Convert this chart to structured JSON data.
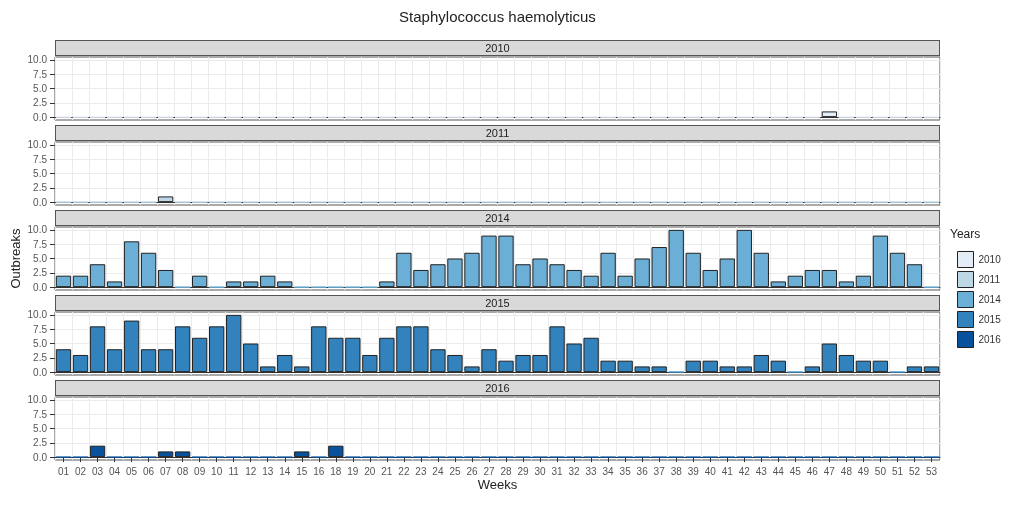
{
  "chart_data": [
    {
      "type": "bar",
      "title": "Staphylococcus haemolyticus",
      "subtitle": "2010",
      "categories": [
        "01",
        "02",
        "03",
        "04",
        "05",
        "06",
        "07",
        "08",
        "09",
        "10",
        "11",
        "12",
        "13",
        "14",
        "15",
        "16",
        "18",
        "19",
        "20",
        "21",
        "22",
        "23",
        "24",
        "25",
        "26",
        "27",
        "28",
        "29",
        "30",
        "31",
        "32",
        "33",
        "34",
        "35",
        "36",
        "37",
        "38",
        "39",
        "40",
        "41",
        "42",
        "43",
        "44",
        "45",
        "46",
        "47",
        "48",
        "49",
        "50",
        "51",
        "52",
        "53"
      ],
      "series": [
        {
          "name": "2010",
          "color": "#e4ecf8",
          "values": [
            0,
            0,
            0,
            0,
            0,
            0,
            0,
            0,
            0,
            0,
            0,
            0,
            0,
            0,
            0,
            0,
            0,
            0,
            0,
            0,
            0,
            0,
            0,
            0,
            0,
            0,
            0,
            0,
            0,
            0,
            0,
            0,
            0,
            0,
            0,
            0,
            0,
            0,
            0,
            0,
            0,
            0,
            0,
            0,
            0,
            1,
            0,
            0,
            0,
            0,
            0,
            0
          ]
        }
      ],
      "ylim": [
        -0.5,
        10.5
      ],
      "yticks": [
        {
          "value": 0,
          "label": "0.0"
        },
        {
          "value": 2.5,
          "label": "2.5"
        },
        {
          "value": 5,
          "label": "5.0"
        },
        {
          "value": 7.5,
          "label": "7.5"
        },
        {
          "value": 10,
          "label": "10.0"
        }
      ],
      "grid": true,
      "tick_labels": "y",
      "legend": "right"
    },
    {
      "type": "bar",
      "subtitle": "2011",
      "legend": "right",
      "categories": [
        "01",
        "02",
        "03",
        "04",
        "05",
        "06",
        "07",
        "08",
        "09",
        "10",
        "11",
        "12",
        "13",
        "14",
        "15",
        "16",
        "18",
        "19",
        "20",
        "21",
        "22",
        "23",
        "24",
        "25",
        "26",
        "27",
        "28",
        "29",
        "30",
        "31",
        "32",
        "33",
        "34",
        "35",
        "36",
        "37",
        "38",
        "39",
        "40",
        "41",
        "42",
        "43",
        "44",
        "45",
        "46",
        "47",
        "48",
        "49",
        "50",
        "51",
        "52",
        "53"
      ],
      "series": [
        {
          "name": "2011",
          "color": "#bdd7e7",
          "values": [
            0,
            0,
            0,
            0,
            0,
            0,
            1,
            0,
            0,
            0,
            0,
            0,
            0,
            0,
            0,
            0,
            0,
            0,
            0,
            0,
            0,
            0,
            0,
            0,
            0,
            0,
            0,
            0,
            0,
            0,
            0,
            0,
            0,
            0,
            0,
            0,
            0,
            0,
            0,
            0,
            0,
            0,
            0,
            0,
            0,
            0,
            0,
            0,
            0,
            0,
            0,
            0
          ]
        }
      ],
      "ylim": [
        -0.5,
        10.5
      ],
      "yticks": [
        {
          "value": 0,
          "label": "0.0"
        },
        {
          "value": 2.5,
          "label": "2.5"
        },
        {
          "value": 5,
          "label": "5.0"
        },
        {
          "value": 7.5,
          "label": "7.5"
        },
        {
          "value": 10,
          "label": "10.0"
        }
      ],
      "grid": true,
      "tick_labels": "y"
    },
    {
      "type": "bar",
      "subtitle": "2014",
      "ylabel": "Outbreaks",
      "legend_title": "Years",
      "legend": "right",
      "categories": [
        "01",
        "02",
        "03",
        "04",
        "05",
        "06",
        "07",
        "08",
        "09",
        "10",
        "11",
        "12",
        "13",
        "14",
        "15",
        "16",
        "18",
        "19",
        "20",
        "21",
        "22",
        "23",
        "24",
        "25",
        "26",
        "27",
        "28",
        "29",
        "30",
        "31",
        "32",
        "33",
        "34",
        "35",
        "36",
        "37",
        "38",
        "39",
        "40",
        "41",
        "42",
        "43",
        "44",
        "45",
        "46",
        "47",
        "48",
        "49",
        "50",
        "51",
        "52",
        "53"
      ],
      "series": [
        {
          "name": "2014",
          "color": "#6baed6",
          "values": [
            2,
            2,
            4,
            1,
            8,
            6,
            3,
            0,
            2,
            0,
            1,
            1,
            2,
            1,
            0,
            0,
            0,
            0,
            0,
            1,
            6,
            3,
            4,
            5,
            6,
            9,
            9,
            4,
            5,
            4,
            3,
            2,
            6,
            2,
            5,
            7,
            10,
            6,
            3,
            5,
            10,
            6,
            1,
            2,
            3,
            3,
            1,
            2,
            9,
            6,
            4,
            0
          ]
        }
      ],
      "ylim": [
        -0.5,
        10.5
      ],
      "yticks": [
        {
          "value": 0,
          "label": "0.0"
        },
        {
          "value": 2.5,
          "label": "2.5"
        },
        {
          "value": 5,
          "label": "5.0"
        },
        {
          "value": 7.5,
          "label": "7.5"
        },
        {
          "value": 10,
          "label": "10.0"
        }
      ],
      "grid": true,
      "tick_labels": "y"
    },
    {
      "type": "bar",
      "subtitle": "2015",
      "legend": "right",
      "categories": [
        "01",
        "02",
        "03",
        "04",
        "05",
        "06",
        "07",
        "08",
        "09",
        "10",
        "11",
        "12",
        "13",
        "14",
        "15",
        "16",
        "18",
        "19",
        "20",
        "21",
        "22",
        "23",
        "24",
        "25",
        "26",
        "27",
        "28",
        "29",
        "30",
        "31",
        "32",
        "33",
        "34",
        "35",
        "36",
        "37",
        "38",
        "39",
        "40",
        "41",
        "42",
        "43",
        "44",
        "45",
        "46",
        "47",
        "48",
        "49",
        "50",
        "51",
        "52",
        "53"
      ],
      "series": [
        {
          "name": "2015",
          "color": "#3182bd",
          "values": [
            4,
            3,
            8,
            4,
            9,
            4,
            4,
            8,
            6,
            8,
            10,
            5,
            1,
            3,
            1,
            8,
            6,
            6,
            3,
            6,
            8,
            8,
            4,
            3,
            1,
            4,
            2,
            3,
            3,
            8,
            5,
            6,
            2,
            2,
            1,
            1,
            0,
            2,
            2,
            1,
            1,
            3,
            2,
            0,
            1,
            5,
            3,
            2,
            2,
            0,
            1,
            1
          ]
        }
      ],
      "ylim": [
        -0.5,
        10.5
      ],
      "yticks": [
        {
          "value": 0,
          "label": "0.0"
        },
        {
          "value": 2.5,
          "label": "2.5"
        },
        {
          "value": 5,
          "label": "5.0"
        },
        {
          "value": 7.5,
          "label": "7.5"
        },
        {
          "value": 10,
          "label": "10.0"
        }
      ],
      "grid": true,
      "tick_labels": "y"
    },
    {
      "type": "bar",
      "subtitle": "2016",
      "legend": "right",
      "xlabel": "Weeks",
      "categories": [
        "01",
        "02",
        "03",
        "04",
        "05",
        "06",
        "07",
        "08",
        "09",
        "10",
        "11",
        "12",
        "13",
        "14",
        "15",
        "16",
        "18",
        "19",
        "20",
        "21",
        "22",
        "23",
        "24",
        "25",
        "26",
        "27",
        "28",
        "29",
        "30",
        "31",
        "32",
        "33",
        "34",
        "35",
        "36",
        "37",
        "38",
        "39",
        "40",
        "41",
        "42",
        "43",
        "44",
        "45",
        "46",
        "47",
        "48",
        "49",
        "50",
        "51",
        "52",
        "53"
      ],
      "series": [
        {
          "name": "2016",
          "color": "#08519c",
          "values": [
            0,
            0,
            2,
            0,
            0,
            0,
            1,
            1,
            0,
            0,
            0,
            0,
            0,
            0,
            1,
            0,
            2,
            0,
            0,
            0,
            0,
            0,
            0,
            0,
            0,
            0,
            0,
            0,
            0,
            0,
            0,
            0,
            0,
            0,
            0,
            0,
            0,
            0,
            0,
            0,
            0,
            0,
            0,
            0,
            0,
            0,
            0,
            0,
            0,
            0,
            0,
            0
          ]
        }
      ],
      "ylim": [
        -0.5,
        10.5
      ],
      "yticks": [
        {
          "value": 0,
          "label": "0.0"
        },
        {
          "value": 2.5,
          "label": "2.5"
        },
        {
          "value": 5,
          "label": "5.0"
        },
        {
          "value": 7.5,
          "label": "7.5"
        },
        {
          "value": 10,
          "label": "10.0"
        }
      ],
      "grid": true
    }
  ]
}
